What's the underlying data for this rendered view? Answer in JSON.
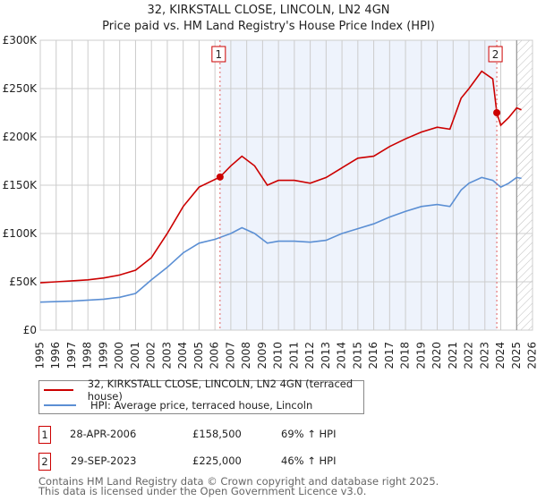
{
  "title": "32, KIRKSTALL CLOSE, LINCOLN, LN2 4GN",
  "subtitle": "Price paid vs. HM Land Registry's House Price Index (HPI)",
  "colors": {
    "property": "#cc0000",
    "hpi": "#5b8fd4",
    "shade": "#eef3fc"
  },
  "chart_data": {
    "type": "line",
    "xlim": [
      1995,
      2026
    ],
    "ylim": [
      0,
      300000
    ],
    "x_ticks": [
      "1995",
      "1996",
      "1997",
      "1998",
      "1999",
      "2000",
      "2001",
      "2002",
      "2003",
      "2004",
      "2005",
      "2006",
      "2007",
      "2008",
      "2009",
      "2010",
      "2011",
      "2012",
      "2013",
      "2014",
      "2015",
      "2016",
      "2017",
      "2018",
      "2019",
      "2020",
      "2021",
      "2022",
      "2023",
      "2024",
      "2025",
      "2026"
    ],
    "y_ticks": [
      {
        "v": 0,
        "label": "£0"
      },
      {
        "v": 50000,
        "label": "£50K"
      },
      {
        "v": 100000,
        "label": "£100K"
      },
      {
        "v": 150000,
        "label": "£150K"
      },
      {
        "v": 200000,
        "label": "£200K"
      },
      {
        "v": 250000,
        "label": "£250K"
      },
      {
        "v": 300000,
        "label": "£300K"
      }
    ],
    "series": [
      {
        "name": "32, KIRKSTALL CLOSE, LINCOLN, LN2 4GN (terraced house)",
        "x": [
          1995,
          1996,
          1997,
          1998,
          1999,
          2000,
          2001,
          2002,
          2003,
          2004,
          2005,
          2006.32,
          2007,
          2007.7,
          2008.5,
          2009.3,
          2010,
          2011,
          2012,
          2013,
          2014,
          2015,
          2016,
          2017,
          2018,
          2019,
          2020,
          2020.8,
          2021.5,
          2022,
          2022.8,
          2023.5,
          2023.75,
          2024,
          2024.5,
          2025,
          2025.3
        ],
        "y": [
          49000,
          50000,
          51000,
          52000,
          54000,
          57000,
          62000,
          75000,
          100000,
          128000,
          148000,
          158500,
          170000,
          180000,
          170000,
          150000,
          155000,
          155000,
          152000,
          158000,
          168000,
          178000,
          180000,
          190000,
          198000,
          205000,
          210000,
          208000,
          240000,
          250000,
          268000,
          260000,
          225000,
          212000,
          220000,
          230000,
          228000
        ]
      },
      {
        "name": "HPI: Average price, terraced house, Lincoln",
        "x": [
          1995,
          1997,
          1999,
          2000,
          2001,
          2002,
          2003,
          2004,
          2005,
          2006,
          2007,
          2007.7,
          2008.5,
          2009.3,
          2010,
          2011,
          2012,
          2013,
          2014,
          2015,
          2016,
          2017,
          2018,
          2019,
          2020,
          2020.8,
          2021.5,
          2022,
          2022.8,
          2023.5,
          2024,
          2024.5,
          2025,
          2025.3
        ],
        "y": [
          29000,
          30000,
          32000,
          34000,
          38000,
          52000,
          65000,
          80000,
          90000,
          94000,
          100000,
          106000,
          100000,
          90000,
          92000,
          92000,
          91000,
          93000,
          100000,
          105000,
          110000,
          117000,
          123000,
          128000,
          130000,
          128000,
          145000,
          152000,
          158000,
          155000,
          148000,
          152000,
          158000,
          157000
        ]
      }
    ],
    "sales": [
      {
        "label": "1",
        "x": 2006.32,
        "y": 158500
      },
      {
        "label": "2",
        "x": 2023.75,
        "y": 225000
      }
    ],
    "shaded_range": [
      2006.32,
      2023.75
    ],
    "forecast_hatch_from": 2025.0
  },
  "legend": {
    "property": "32, KIRKSTALL CLOSE, LINCOLN, LN2 4GN (terraced house)",
    "hpi": "HPI: Average price, terraced house, Lincoln"
  },
  "transactions": [
    {
      "num": "1",
      "date": "28-APR-2006",
      "price": "£158,500",
      "hpi": "69% ↑ HPI"
    },
    {
      "num": "2",
      "date": "29-SEP-2023",
      "price": "£225,000",
      "hpi": "46% ↑ HPI"
    }
  ],
  "footer": [
    "Contains HM Land Registry data © Crown copyright and database right 2025.",
    "This data is licensed under the Open Government Licence v3.0."
  ]
}
